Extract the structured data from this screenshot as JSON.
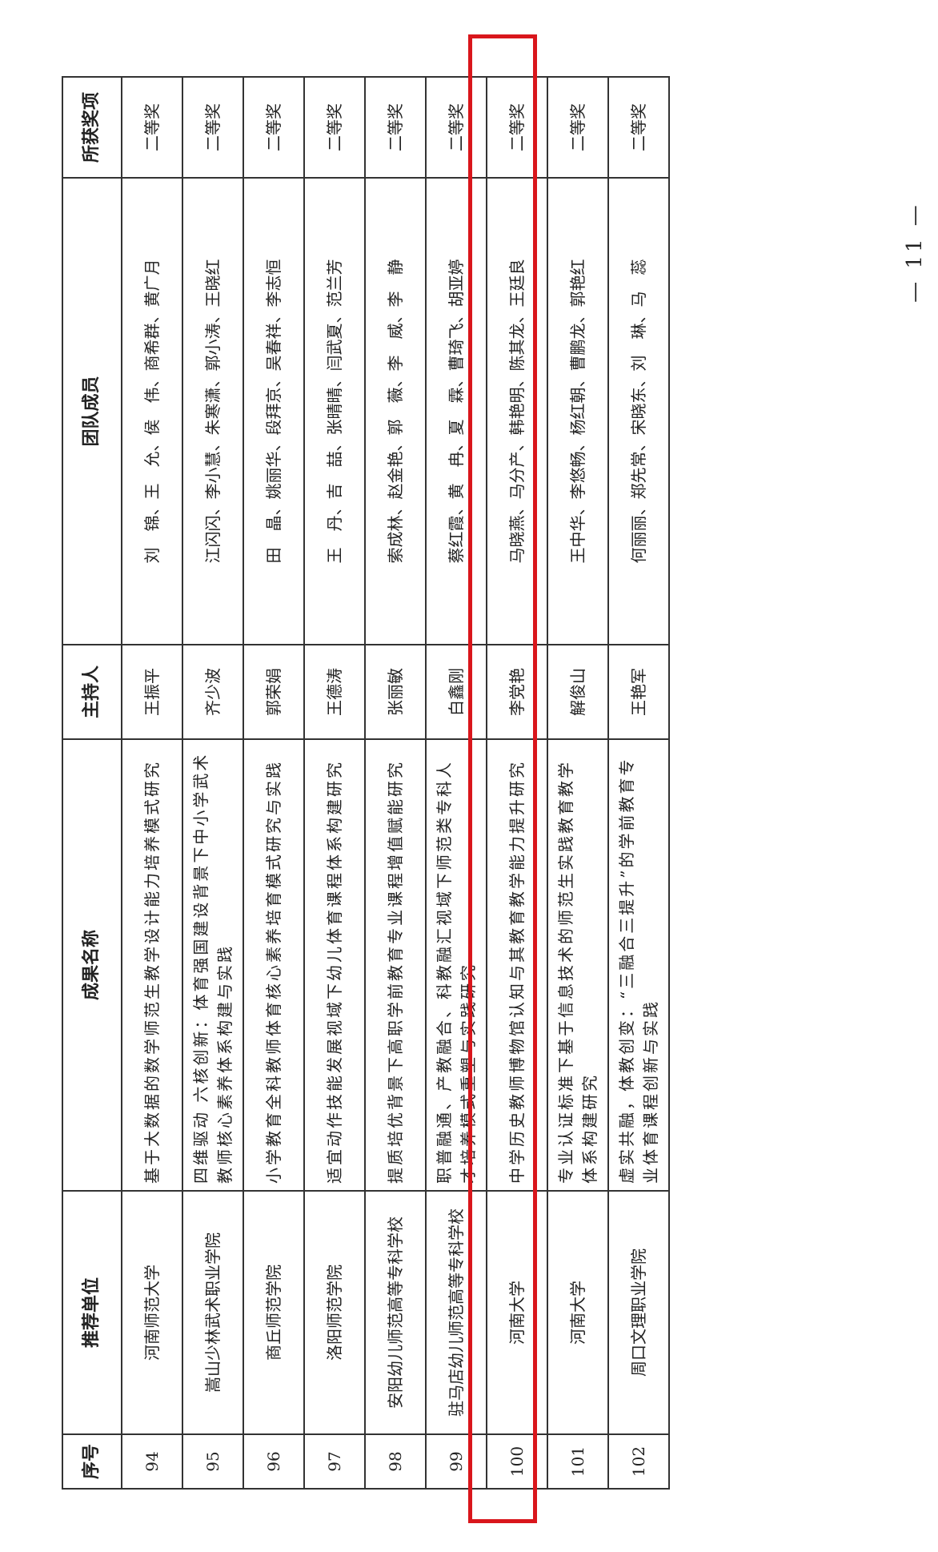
{
  "headers": {
    "no": "序号",
    "unit": "推荐单位",
    "title": "成果名称",
    "host": "主持人",
    "members": "团队成员",
    "award": "所获奖项"
  },
  "rows": [
    {
      "no": "94",
      "unit": "河南师范大学",
      "title": "基于大数据的数学师范生教学设计能力培养模式研究",
      "host": "王振平",
      "members": "刘　锦、王　允、侯　伟、商希群、黄广月",
      "award": "二等奖"
    },
    {
      "no": "95",
      "unit": "嵩山少林武术职业学院",
      "title": "四维驱动 六核创新：体育强国建设背景下中小学武术教师核心素养体系构建与实践",
      "host": "齐少波",
      "members": "江闪闪、李小慧、朱寒潇、郭小涛、王晓红",
      "award": "二等奖"
    },
    {
      "no": "96",
      "unit": "商丘师范学院",
      "title": "小学教育全科教师体育核心素养培育模式研究与实践",
      "host": "郭荣娟",
      "members": "田　晶、姚丽华、段拜京、吴春祥、李志恒",
      "award": "二等奖"
    },
    {
      "no": "97",
      "unit": "洛阳师范学院",
      "title": "适宜动作技能发展视域下幼儿体育课程体系构建研究",
      "host": "王德涛",
      "members": "王　丹、吉　喆、张晴晴、闫武夏、范兰芳",
      "award": "二等奖"
    },
    {
      "no": "98",
      "unit": "安阳幼儿师范高等专科学校",
      "title": "提质培优背景下高职学前教育专业课程增值赋能研究",
      "host": "张丽敏",
      "members": "索成林、赵金艳、郭　薇、李　威、李　静",
      "award": "二等奖"
    },
    {
      "no": "99",
      "unit": "驻马店幼儿师范高等专科学校",
      "title": "职普融通、产教融合、科教融汇视域下师范类专科人才培养模式重塑与实践研究",
      "host": "白鑫刚",
      "members": "蔡红霞、黄　冉、夏　霖、曹琦飞、胡亚婷",
      "award": "二等奖"
    },
    {
      "no": "100",
      "unit": "河南大学",
      "title": "中学历史教师博物馆认知与其教育教学能力提升研究",
      "host": "李党艳",
      "members": "马晓燕、马分产、韩艳明、陈其龙、王廷良",
      "award": "二等奖"
    },
    {
      "no": "101",
      "unit": "河南大学",
      "title": "专业认证标准下基于信息技术的师范生实践教育教学体系构建研究",
      "host": "解俊山",
      "members": "王中华、李悠畅、杨红朝、曹鹏龙、郭艳红",
      "award": "二等奖"
    },
    {
      "no": "102",
      "unit": "周口文理职业学院",
      "title": "虚实共融，体教创变：“三融合三提升”的学前教育专业体育课程创新与实践",
      "host": "王艳军",
      "members": "何丽丽、郑先常、宋晓东、刘　琳、马　蕊",
      "award": "二等奖"
    }
  ],
  "highlight": {
    "row_no": "100",
    "color": "#d9161c"
  },
  "page_number": "— 11 —"
}
